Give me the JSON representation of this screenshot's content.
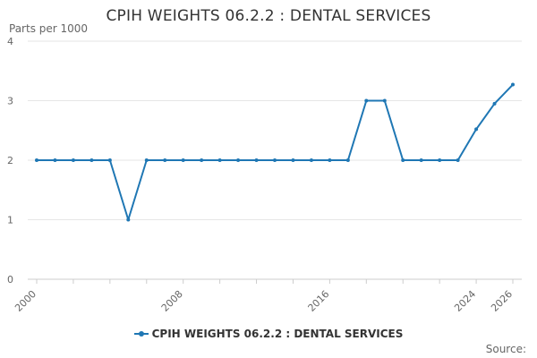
{
  "chart_data": {
    "type": "line",
    "title": "CPIH WEIGHTS 06.2.2 : DENTAL SERVICES",
    "ylabel": "Parts per 1000",
    "xlabel": "",
    "xlim": [
      2000,
      2026
    ],
    "ylim": [
      0,
      4
    ],
    "y_ticks": [
      0,
      1,
      2,
      3,
      4
    ],
    "x_ticks": [
      "2000",
      "2008",
      "2016",
      "2024",
      "2026"
    ],
    "grid": true,
    "legend_position": "bottom",
    "series": [
      {
        "name": "CPIH WEIGHTS 06.2.2 : DENTAL SERVICES",
        "color": "#1f77b4",
        "x": [
          2000,
          2001,
          2002,
          2003,
          2004,
          2005,
          2006,
          2007,
          2008,
          2009,
          2010,
          2011,
          2012,
          2013,
          2014,
          2015,
          2016,
          2017,
          2018,
          2019,
          2020,
          2021,
          2022,
          2023,
          2024,
          2025,
          2026
        ],
        "values": [
          2,
          2,
          2,
          2,
          2,
          1,
          2,
          2,
          2,
          2,
          2,
          2,
          2,
          2,
          2,
          2,
          2,
          2,
          3,
          3,
          2,
          2,
          2,
          2,
          2.52,
          2.95,
          3.27
        ]
      }
    ]
  },
  "source_label": "Source:"
}
